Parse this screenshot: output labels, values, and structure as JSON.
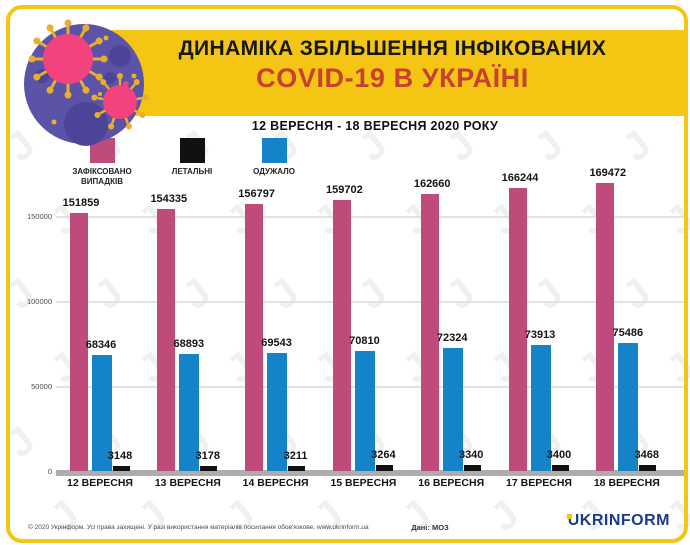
{
  "header": {
    "title_line1": "ДИНАМІКА ЗБІЛЬШЕННЯ ІНФІКОВАНИХ",
    "title_line2": "COVID-19 В УКРАЇНІ",
    "subtitle": "12 ВЕРЕСНЯ - 18 ВЕРЕСНЯ  2020 РОКУ"
  },
  "chart_data": {
    "type": "bar",
    "categories": [
      "12 ВЕРЕСНЯ",
      "13 ВЕРЕСНЯ",
      "14 ВЕРЕСНЯ",
      "15 ВЕРЕСНЯ",
      "16 ВЕРЕСНЯ",
      "17 ВЕРЕСНЯ",
      "18 ВЕРЕСНЯ"
    ],
    "series": [
      {
        "name": "ЗАФІКСОВАНО ВИПАДКІВ",
        "color": "#BE4B7B",
        "values": [
          151859,
          154335,
          156797,
          159702,
          162660,
          166244,
          169472
        ]
      },
      {
        "name": "ЛЕТАЛЬНІ",
        "color": "#111111",
        "values": [
          3148,
          3178,
          3211,
          3264,
          3340,
          3400,
          3468
        ]
      },
      {
        "name": "ОДУЖАЛО",
        "color": "#1583C8",
        "values": [
          68346,
          68893,
          69543,
          70810,
          72324,
          73913,
          75486
        ]
      }
    ],
    "y_ticks": [
      0,
      50000,
      100000,
      150000
    ],
    "ylim": [
      0,
      175000
    ],
    "grid": true,
    "legend_position": "top-left",
    "title": "ДИНАМІКА ЗБІЛЬШЕННЯ ІНФІКОВАНИХ COVID-19 В УКРАЇНІ",
    "xlabel": "",
    "ylabel": ""
  },
  "footer": {
    "copyright": "© 2020 Укрінформ. Усі права захищені. У разі використання матеріалів посилання обов'язкове. www.ukrinform.ua",
    "source": "Дані: МОЗ",
    "logo": "UKRINFORM"
  },
  "colors": {
    "brand_yellow": "#F5C513",
    "title_red": "#C8402F",
    "cases_pink": "#BE4B7B",
    "deaths_black": "#111111",
    "recovered_blue": "#1583C8",
    "logo_navy": "#1B3A8C"
  }
}
